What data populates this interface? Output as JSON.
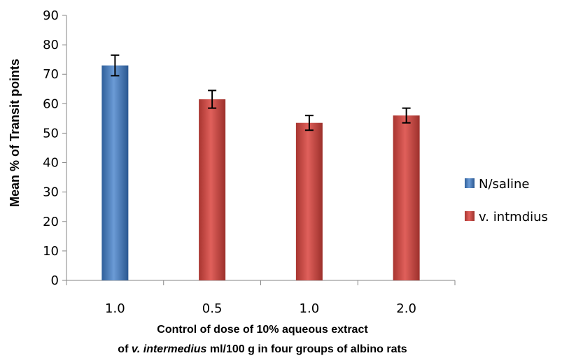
{
  "chart_data": {
    "type": "bar",
    "categories": [
      "1.0",
      "0.5",
      "1.0",
      "2.0"
    ],
    "series": [
      {
        "name": "N/saline",
        "values": [
          73,
          null,
          null,
          null
        ],
        "error": [
          3.5,
          null,
          null,
          null
        ],
        "color": "#4f81bd"
      },
      {
        "name": "v. intmdius",
        "values": [
          null,
          61.5,
          53.5,
          56
        ],
        "error": [
          null,
          3,
          2.5,
          2.5
        ],
        "color": "#c0504d"
      }
    ],
    "ylim": [
      0,
      90
    ],
    "yticks": [
      "0",
      "10",
      "20",
      "30",
      "40",
      "50",
      "60",
      "70",
      "80",
      "90"
    ],
    "ylabel": "Mean % of Transit points",
    "xlabel_line1": "Control of dose of 10% aqueous extract",
    "xlabel_line2_pre": "of ",
    "xlabel_line2_italic": "v. intermedius",
    "xlabel_line2_post": " ml/100 g in four groups of albino rats",
    "grid": false,
    "legend_position": "right"
  }
}
